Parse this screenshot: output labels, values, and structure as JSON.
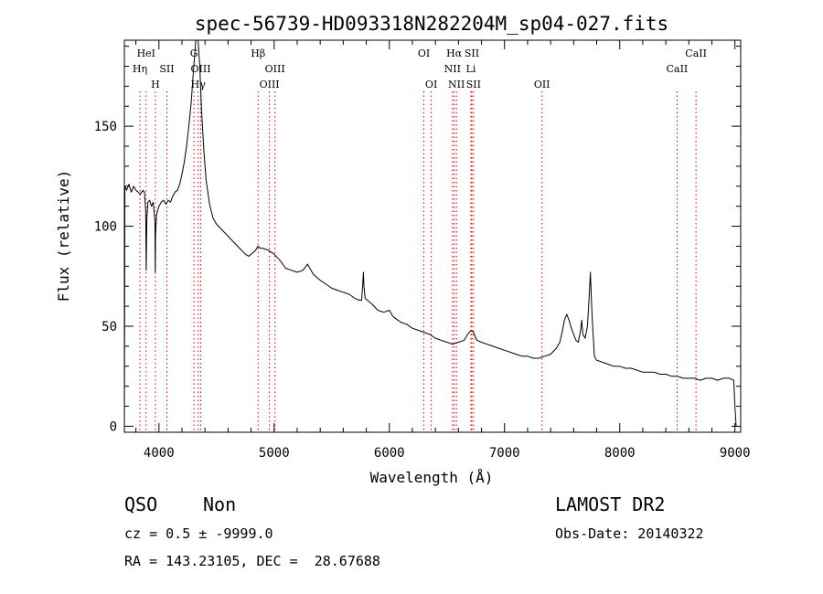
{
  "chart_data": {
    "type": "line",
    "title": "spec-56739-HD093318N282204M_sp04-027.fits",
    "xlabel": "Wavelength (Å)",
    "ylabel": "Flux (relative)",
    "xlim": [
      3700,
      9050
    ],
    "ylim": [
      -3,
      193
    ],
    "xticks": [
      4000,
      5000,
      6000,
      7000,
      8000,
      9000
    ],
    "yticks": [
      0,
      50,
      100,
      150
    ],
    "grid": false,
    "series": [
      {
        "line_color": "#000000",
        "points": [
          [
            3700,
            0
          ],
          [
            3705,
            120
          ],
          [
            3720,
            118
          ],
          [
            3740,
            121
          ],
          [
            3760,
            117
          ],
          [
            3780,
            120
          ],
          [
            3800,
            118
          ],
          [
            3820,
            117
          ],
          [
            3840,
            116
          ],
          [
            3860,
            118
          ],
          [
            3875,
            117
          ],
          [
            3885,
            108
          ],
          [
            3890,
            78
          ],
          [
            3895,
            104
          ],
          [
            3905,
            112
          ],
          [
            3920,
            113
          ],
          [
            3935,
            110
          ],
          [
            3950,
            112
          ],
          [
            3965,
            103
          ],
          [
            3968,
            77
          ],
          [
            3971,
            96
          ],
          [
            3980,
            106
          ],
          [
            3990,
            108
          ],
          [
            4000,
            110
          ],
          [
            4020,
            112
          ],
          [
            4040,
            113
          ],
          [
            4060,
            111
          ],
          [
            4080,
            113
          ],
          [
            4100,
            112
          ],
          [
            4120,
            115
          ],
          [
            4140,
            117
          ],
          [
            4160,
            118
          ],
          [
            4180,
            121
          ],
          [
            4200,
            126
          ],
          [
            4220,
            132
          ],
          [
            4240,
            140
          ],
          [
            4260,
            150
          ],
          [
            4280,
            162
          ],
          [
            4300,
            178
          ],
          [
            4320,
            193
          ],
          [
            4340,
            193
          ],
          [
            4355,
            180
          ],
          [
            4370,
            158
          ],
          [
            4390,
            138
          ],
          [
            4410,
            123
          ],
          [
            4440,
            111
          ],
          [
            4470,
            104
          ],
          [
            4500,
            101
          ],
          [
            4550,
            98
          ],
          [
            4600,
            95
          ],
          [
            4650,
            92
          ],
          [
            4700,
            89
          ],
          [
            4750,
            86
          ],
          [
            4780,
            85
          ],
          [
            4800,
            86
          ],
          [
            4820,
            87
          ],
          [
            4840,
            88
          ],
          [
            4860,
            90
          ],
          [
            4880,
            89
          ],
          [
            4900,
            89
          ],
          [
            4950,
            88
          ],
          [
            5000,
            86
          ],
          [
            5050,
            83
          ],
          [
            5100,
            79
          ],
          [
            5150,
            78
          ],
          [
            5200,
            77
          ],
          [
            5250,
            78
          ],
          [
            5290,
            81
          ],
          [
            5310,
            79
          ],
          [
            5340,
            76
          ],
          [
            5400,
            73
          ],
          [
            5450,
            71
          ],
          [
            5500,
            69
          ],
          [
            5550,
            68
          ],
          [
            5600,
            67
          ],
          [
            5650,
            66
          ],
          [
            5700,
            64
          ],
          [
            5740,
            63
          ],
          [
            5760,
            63
          ],
          [
            5770,
            72
          ],
          [
            5775,
            77
          ],
          [
            5780,
            70
          ],
          [
            5790,
            64
          ],
          [
            5850,
            61
          ],
          [
            5900,
            58
          ],
          [
            5950,
            57
          ],
          [
            6000,
            58
          ],
          [
            6030,
            55
          ],
          [
            6050,
            54
          ],
          [
            6100,
            52
          ],
          [
            6150,
            51
          ],
          [
            6200,
            49
          ],
          [
            6250,
            48
          ],
          [
            6300,
            47
          ],
          [
            6350,
            46
          ],
          [
            6400,
            44
          ],
          [
            6450,
            43
          ],
          [
            6500,
            42
          ],
          [
            6550,
            41
          ],
          [
            6600,
            42
          ],
          [
            6650,
            43
          ],
          [
            6680,
            46
          ],
          [
            6710,
            48
          ],
          [
            6730,
            47
          ],
          [
            6760,
            43
          ],
          [
            6800,
            42
          ],
          [
            6850,
            41
          ],
          [
            6900,
            40
          ],
          [
            6950,
            39
          ],
          [
            7000,
            38
          ],
          [
            7050,
            37
          ],
          [
            7100,
            36
          ],
          [
            7150,
            35
          ],
          [
            7200,
            35
          ],
          [
            7250,
            34
          ],
          [
            7300,
            34
          ],
          [
            7350,
            35
          ],
          [
            7400,
            36
          ],
          [
            7450,
            39
          ],
          [
            7480,
            42
          ],
          [
            7500,
            47
          ],
          [
            7520,
            53
          ],
          [
            7540,
            56
          ],
          [
            7560,
            53
          ],
          [
            7580,
            49
          ],
          [
            7600,
            46
          ],
          [
            7620,
            43
          ],
          [
            7640,
            42
          ],
          [
            7660,
            48
          ],
          [
            7670,
            53
          ],
          [
            7680,
            46
          ],
          [
            7700,
            44
          ],
          [
            7720,
            50
          ],
          [
            7730,
            60
          ],
          [
            7740,
            71
          ],
          [
            7745,
            77
          ],
          [
            7750,
            70
          ],
          [
            7760,
            55
          ],
          [
            7780,
            35
          ],
          [
            7800,
            33
          ],
          [
            7850,
            32
          ],
          [
            7900,
            31
          ],
          [
            7950,
            30
          ],
          [
            8000,
            30
          ],
          [
            8050,
            29
          ],
          [
            8100,
            29
          ],
          [
            8150,
            28
          ],
          [
            8200,
            27
          ],
          [
            8250,
            27
          ],
          [
            8300,
            27
          ],
          [
            8350,
            26
          ],
          [
            8400,
            26
          ],
          [
            8450,
            25
          ],
          [
            8500,
            25
          ],
          [
            8550,
            24
          ],
          [
            8600,
            24
          ],
          [
            8650,
            24
          ],
          [
            8700,
            23
          ],
          [
            8750,
            24
          ],
          [
            8800,
            24
          ],
          [
            8850,
            23
          ],
          [
            8900,
            24
          ],
          [
            8950,
            24
          ],
          [
            8990,
            23
          ],
          [
            9000,
            10
          ],
          [
            9010,
            0
          ]
        ]
      }
    ],
    "line_markers": {
      "color": "#dd0000",
      "items": [
        {
          "label": "HeI",
          "wavelength": 3889,
          "label_row": 0
        },
        {
          "label": "Hη",
          "wavelength": 3835,
          "label_row": 1
        },
        {
          "label": "SII",
          "wavelength": 4069,
          "label_row": 1
        },
        {
          "label": "H",
          "wavelength": 3969,
          "label_row": 2
        },
        {
          "label": "G",
          "wavelength": 4304,
          "label_row": 0
        },
        {
          "label": "OIII",
          "wavelength": 4363,
          "label_row": 1
        },
        {
          "label": "Hγ",
          "wavelength": 4341,
          "label_row": 2
        },
        {
          "label": "Hβ",
          "wavelength": 4861,
          "label_row": 0
        },
        {
          "label": "OIII",
          "wavelength": 5007,
          "label_row": 1
        },
        {
          "label": "OIII",
          "wavelength": 4959,
          "label_row": 2
        },
        {
          "label": "OI",
          "wavelength": 6300,
          "label_row": 0
        },
        {
          "label": "OI",
          "wavelength": 6364,
          "label_row": 2
        },
        {
          "label": "Hα",
          "wavelength": 6563,
          "label_row": 0
        },
        {
          "label": "SII",
          "wavelength": 6716,
          "label_row": 0
        },
        {
          "label": "NII",
          "wavelength": 6548,
          "label_row": 1
        },
        {
          "label": "Li",
          "wavelength": 6708,
          "label_row": 1
        },
        {
          "label": "NII",
          "wavelength": 6583,
          "label_row": 2
        },
        {
          "label": "SII",
          "wavelength": 6731,
          "label_row": 2
        },
        {
          "label": "OII",
          "wavelength": 7325,
          "label_row": 2
        },
        {
          "label": "CaII",
          "wavelength": 8662,
          "label_row": 0
        },
        {
          "label": "CaII",
          "wavelength": 8498,
          "label_row": 1
        }
      ]
    }
  },
  "info": {
    "class_label": "QSO",
    "subclass_label": "Non",
    "survey": "LAMOST DR2",
    "cz_line": "cz = 0.5 ± -9999.0",
    "obs_date_line": "Obs-Date: 20140322",
    "coords_line": "RA = 143.23105, DEC =  28.67688"
  }
}
